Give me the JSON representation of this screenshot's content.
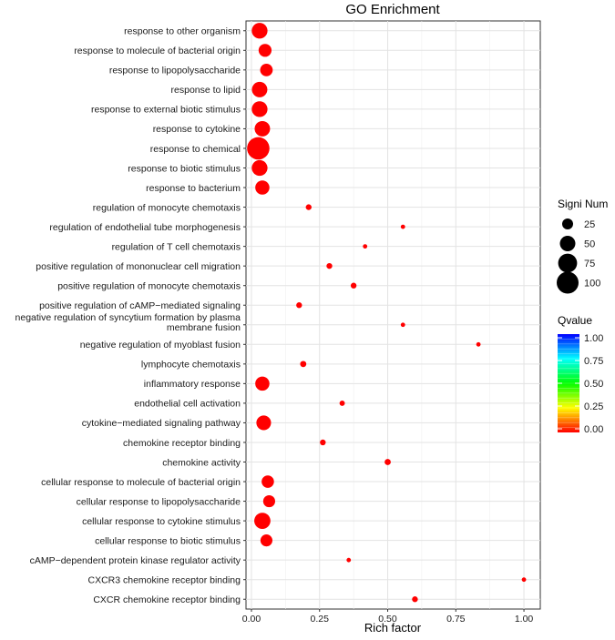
{
  "chart_data": {
    "type": "scatter",
    "title": "GO Enrichment",
    "xlabel": "Rich factor",
    "ylabel": "",
    "xlim": [
      -0.02,
      1.06
    ],
    "xticks": [
      0.0,
      0.25,
      0.5,
      0.75,
      1.0
    ],
    "xtick_labels": [
      "0.00",
      "0.25",
      "0.50",
      "0.75",
      "1.00"
    ],
    "grid": true,
    "point_color": "#ff0000",
    "terms": [
      {
        "term": "response to other organism",
        "rich_factor": 0.03,
        "signi_num": 52,
        "qvalue": 0.0
      },
      {
        "term": "response to molecule of bacterial origin",
        "rich_factor": 0.05,
        "signi_num": 35,
        "qvalue": 0.0
      },
      {
        "term": "response to lipopolysaccharide",
        "rich_factor": 0.055,
        "signi_num": 33,
        "qvalue": 0.0
      },
      {
        "term": "response to lipid",
        "rich_factor": 0.03,
        "signi_num": 50,
        "qvalue": 0.0
      },
      {
        "term": "response to external biotic stimulus",
        "rich_factor": 0.03,
        "signi_num": 52,
        "qvalue": 0.0
      },
      {
        "term": "response to cytokine",
        "rich_factor": 0.04,
        "signi_num": 50,
        "qvalue": 0.0
      },
      {
        "term": "response to chemical",
        "rich_factor": 0.025,
        "signi_num": 105,
        "qvalue": 0.0
      },
      {
        "term": "response to biotic stimulus",
        "rich_factor": 0.03,
        "signi_num": 52,
        "qvalue": 0.0
      },
      {
        "term": "response to bacterium",
        "rich_factor": 0.04,
        "signi_num": 42,
        "qvalue": 0.0
      },
      {
        "term": "regulation of monocyte chemotaxis",
        "rich_factor": 0.21,
        "signi_num": 7,
        "qvalue": 0.0
      },
      {
        "term": "regulation of endothelial tube morphogenesis",
        "rich_factor": 0.556,
        "signi_num": 4,
        "qvalue": 0.0
      },
      {
        "term": "regulation of T cell chemotaxis",
        "rich_factor": 0.417,
        "signi_num": 4,
        "qvalue": 0.0
      },
      {
        "term": "positive regulation of mononuclear cell migration",
        "rich_factor": 0.286,
        "signi_num": 7,
        "qvalue": 0.0
      },
      {
        "term": "positive regulation of monocyte chemotaxis",
        "rich_factor": 0.375,
        "signi_num": 7,
        "qvalue": 0.0
      },
      {
        "term": "positive regulation of cAMP−mediated signaling",
        "rich_factor": 0.175,
        "signi_num": 7,
        "qvalue": 0.0
      },
      {
        "term": "negative regulation of syncytium formation by plasma membrane fusion",
        "label_lines": [
          "negative regulation of syncytium formation by plasma",
          "membrane fusion"
        ],
        "rich_factor": 0.556,
        "signi_num": 4,
        "qvalue": 0.0
      },
      {
        "term": "negative regulation of myoblast fusion",
        "rich_factor": 0.833,
        "signi_num": 4,
        "qvalue": 0.0
      },
      {
        "term": "lymphocyte chemotaxis",
        "rich_factor": 0.19,
        "signi_num": 8,
        "qvalue": 0.0
      },
      {
        "term": "inflammatory response",
        "rich_factor": 0.04,
        "signi_num": 42,
        "qvalue": 0.0
      },
      {
        "term": "endothelial cell activation",
        "rich_factor": 0.333,
        "signi_num": 6,
        "qvalue": 0.0
      },
      {
        "term": "cytokine−mediated signaling pathway",
        "rich_factor": 0.045,
        "signi_num": 45,
        "qvalue": 0.0
      },
      {
        "term": "chemokine receptor binding",
        "rich_factor": 0.262,
        "signi_num": 7,
        "qvalue": 0.0
      },
      {
        "term": "chemokine activity",
        "rich_factor": 0.5,
        "signi_num": 8,
        "qvalue": 0.0
      },
      {
        "term": "cellular response to molecule of bacterial origin",
        "rich_factor": 0.06,
        "signi_num": 32,
        "qvalue": 0.0
      },
      {
        "term": "cellular response to lipopolysaccharide",
        "rich_factor": 0.065,
        "signi_num": 30,
        "qvalue": 0.0
      },
      {
        "term": "cellular response to cytokine stimulus",
        "rich_factor": 0.04,
        "signi_num": 55,
        "qvalue": 0.0
      },
      {
        "term": "cellular response to biotic stimulus",
        "rich_factor": 0.055,
        "signi_num": 30,
        "qvalue": 0.0
      },
      {
        "term": "cAMP−dependent protein kinase regulator activity",
        "rich_factor": 0.357,
        "signi_num": 4,
        "qvalue": 0.0
      },
      {
        "term": "CXCR3 chemokine receptor binding",
        "rich_factor": 1.0,
        "signi_num": 4,
        "qvalue": 0.0
      },
      {
        "term": "CXCR chemokine receptor binding",
        "rich_factor": 0.6,
        "signi_num": 7,
        "qvalue": 0.0
      }
    ],
    "legend_size": {
      "title": "Signi Num",
      "values": [
        25,
        50,
        75,
        100
      ],
      "labels": [
        "25",
        "50",
        "75",
        "100"
      ]
    },
    "legend_color": {
      "title": "Qvalue",
      "ticks": [
        0.0,
        0.25,
        0.5,
        0.75,
        1.0
      ],
      "tick_labels": [
        "0.00",
        "0.25",
        "0.50",
        "0.75",
        "1.00"
      ],
      "colors": [
        "#ff0000",
        "#ffff00",
        "#00ff00",
        "#00ffff",
        "#0000ff"
      ]
    }
  }
}
